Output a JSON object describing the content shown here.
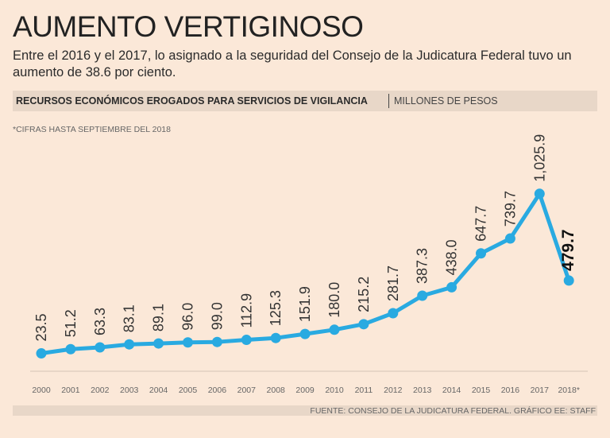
{
  "title": "AUMENTO VERTIGINOSO",
  "subtitle": "Entre el 2016 y el 2017, lo asignado a la seguridad del Consejo de la Judicatura Federal tuvo un aumento de 38.6 por ciento.",
  "band": {
    "main": "RECURSOS ECONÓMICOS EROGADOS PARA SERVICIOS DE VIGILANCIA",
    "unit": "MILLONES DE PESOS"
  },
  "note": "*CIFRAS HASTA SEPTIEMBRE DEL 2018",
  "source": "FUENTE: CONSEJO DE LA JUDICATURA FEDERAL. GRÁFICO EE: STAFF",
  "colors": {
    "line": "#29aae1",
    "background": "#fbe8d8",
    "band": "#e8d7c8"
  },
  "chart_data": {
    "type": "line",
    "x": [
      "2000",
      "2001",
      "2002",
      "2003",
      "2004",
      "2005",
      "2006",
      "2007",
      "2008",
      "2009",
      "2010",
      "2011",
      "2012",
      "2013",
      "2014",
      "2015",
      "2016",
      "2017",
      "2018*"
    ],
    "values": [
      23.5,
      51.2,
      63.3,
      83.1,
      89.1,
      96.0,
      99.0,
      112.9,
      125.3,
      151.9,
      180.0,
      215.2,
      281.7,
      387.3,
      438.0,
      647.7,
      739.7,
      1025.9,
      479.7
    ],
    "labels": [
      "23.5",
      "51.2",
      "63.3",
      "83.1",
      "89.1",
      "96.0",
      "99.0",
      "112.9",
      "125.3",
      "151.9",
      "180.0",
      "215.2",
      "281.7",
      "387.3",
      "438.0",
      "647.7",
      "739.7",
      "1,025.9",
      "479.7"
    ],
    "highlight_index": 18,
    "ylabel": "",
    "xlabel": "",
    "grid": false
  }
}
